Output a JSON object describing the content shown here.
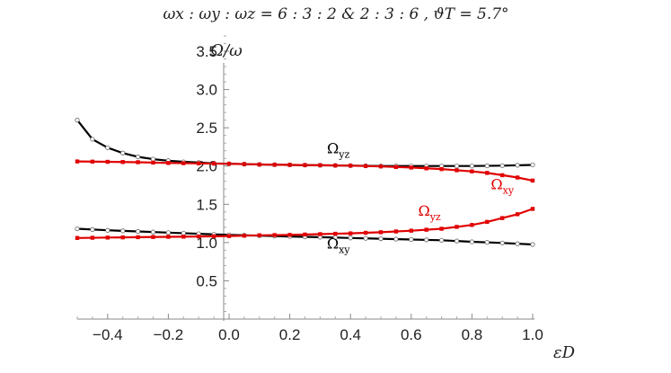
{
  "chart_data": {
    "type": "line",
    "title": "ωx : ωy : ωz  =  6 : 3 : 2  &  2 : 3 : 6  ,  ϑT = 5.7°",
    "xlabel": "εD",
    "ylabel": "Ω/ω",
    "xlim": [
      -0.5,
      1.0
    ],
    "ylim": [
      0.0,
      3.7
    ],
    "xticks": [
      "-0.4",
      "-0.2",
      "0.0",
      "0.2",
      "0.4",
      "0.6",
      "0.8",
      "1.0"
    ],
    "yticks": [
      "0.5",
      "1.0",
      "1.5",
      "2.0",
      "2.5",
      "3.0",
      "3.5"
    ],
    "grid": false,
    "colors": {
      "black": "#000000",
      "red": "#e00000"
    },
    "series": [
      {
        "name": "Ωyz",
        "color": "#000000",
        "x": [
          -0.5,
          -0.45,
          -0.4,
          -0.35,
          -0.3,
          -0.25,
          -0.2,
          -0.15,
          -0.1,
          -0.05,
          0.0,
          0.1,
          0.2,
          0.3,
          0.4,
          0.5,
          0.6,
          0.7,
          0.8,
          0.9,
          1.0
        ],
        "y": [
          2.6,
          2.35,
          2.24,
          2.17,
          2.12,
          2.09,
          2.07,
          2.055,
          2.045,
          2.035,
          2.03,
          2.02,
          2.015,
          2.01,
          2.005,
          2.0,
          2.0,
          2.0,
          2.0,
          2.005,
          2.015
        ]
      },
      {
        "name": "Ωxy",
        "color": "#000000",
        "x": [
          -0.5,
          -0.4,
          -0.3,
          -0.2,
          -0.1,
          0.0,
          0.1,
          0.2,
          0.3,
          0.4,
          0.5,
          0.6,
          0.7,
          0.8,
          0.9,
          1.0
        ],
        "y": [
          1.18,
          1.16,
          1.145,
          1.13,
          1.115,
          1.1,
          1.09,
          1.08,
          1.07,
          1.06,
          1.05,
          1.04,
          1.03,
          1.01,
          0.995,
          0.975
        ]
      },
      {
        "name": "Ωxy",
        "color": "#e00000",
        "x": [
          -0.5,
          -0.4,
          -0.3,
          -0.2,
          -0.1,
          0.0,
          0.1,
          0.2,
          0.3,
          0.4,
          0.5,
          0.6,
          0.7,
          0.8,
          0.85,
          0.9,
          0.95,
          1.0
        ],
        "y": [
          2.06,
          2.055,
          2.05,
          2.04,
          2.035,
          2.03,
          2.02,
          2.015,
          2.01,
          2.005,
          1.995,
          1.98,
          1.96,
          1.93,
          1.91,
          1.88,
          1.85,
          1.81
        ]
      },
      {
        "name": "Ωyz",
        "color": "#e00000",
        "x": [
          -0.5,
          -0.4,
          -0.3,
          -0.2,
          -0.1,
          0.0,
          0.1,
          0.2,
          0.3,
          0.4,
          0.5,
          0.6,
          0.7,
          0.8,
          0.85,
          0.9,
          0.95,
          1.0
        ],
        "y": [
          1.06,
          1.065,
          1.07,
          1.075,
          1.08,
          1.085,
          1.095,
          1.1,
          1.11,
          1.12,
          1.135,
          1.155,
          1.18,
          1.23,
          1.27,
          1.32,
          1.37,
          1.44
        ]
      }
    ],
    "annotations": [
      {
        "text": "Ωyz",
        "color": "#000000",
        "x": 0.36,
        "y": 2.17
      },
      {
        "text": "Ωxy",
        "color": "#e00000",
        "x": 0.9,
        "y": 1.7
      },
      {
        "text": "Ωyz",
        "color": "#e00000",
        "x": 0.66,
        "y": 1.35
      },
      {
        "text": "Ωxy",
        "color": "#000000",
        "x": 0.36,
        "y": 0.92
      }
    ]
  }
}
